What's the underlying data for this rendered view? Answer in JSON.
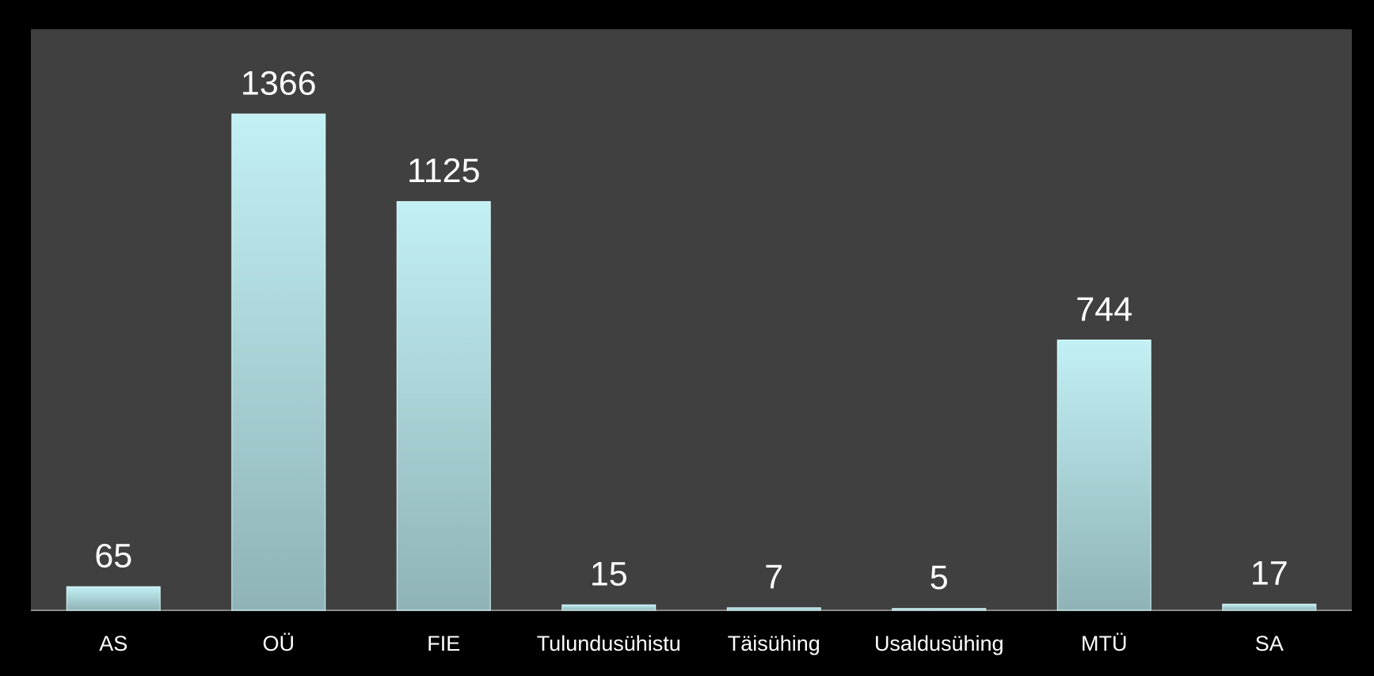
{
  "chart_data": {
    "type": "bar",
    "categories": [
      "AS",
      "OÜ",
      "FIE",
      "Tulundusühistu",
      "Täisühing",
      "Usaldusühing",
      "MTÜ",
      "SA"
    ],
    "values": [
      65,
      1366,
      1125,
      15,
      7,
      5,
      744,
      17
    ],
    "color": "#b4e4e8"
  }
}
